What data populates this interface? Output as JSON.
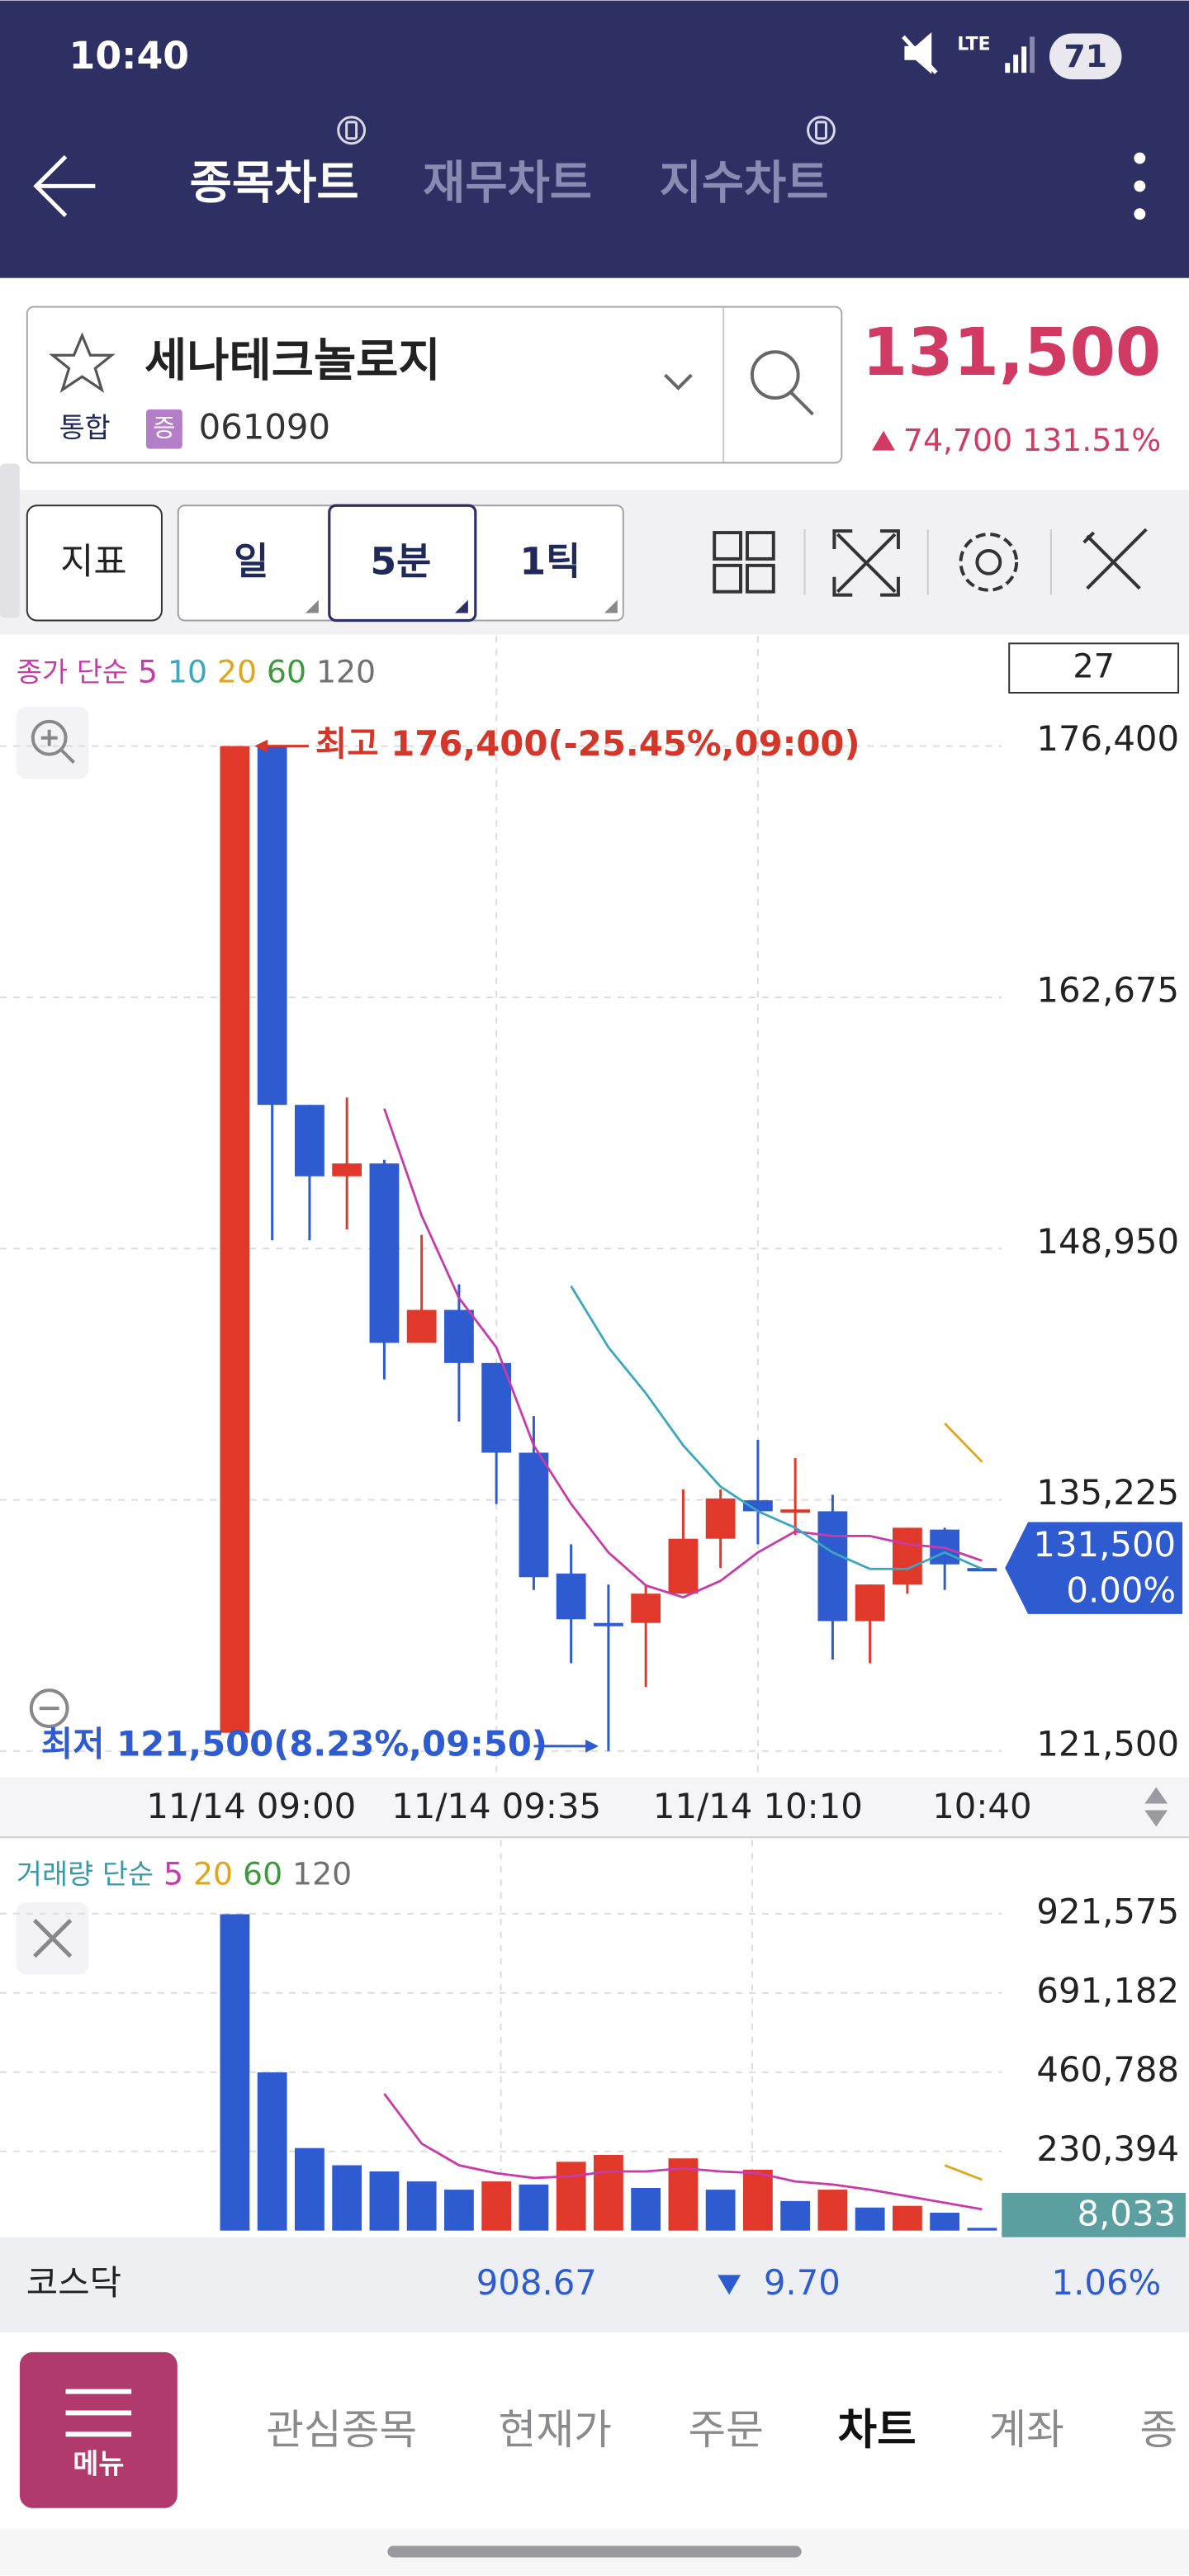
{
  "status_bar": {
    "time": "10:40",
    "network": "LTE",
    "battery": "71"
  },
  "header": {
    "tabs": [
      "종목차트",
      "재무차트",
      "지수차트"
    ]
  },
  "stock": {
    "name": "세나테크놀로지",
    "market": "통합",
    "badge": "증",
    "code": "061090",
    "price": "131,500",
    "change": "74,700",
    "change_rate": "131.51%"
  },
  "toolbar": {
    "indicator": "지표",
    "periods": [
      "일",
      "5분",
      "1틱"
    ]
  },
  "price_chart": {
    "type": "candlestick",
    "legend_label": "종가 단순",
    "count": "27",
    "up_color": "#e0392b",
    "down_color": "#2e5bd0",
    "categories": [
      "11/14 09:00",
      null,
      null,
      null,
      null,
      null,
      null,
      "11/14 09:35",
      null,
      null,
      null,
      null,
      null,
      null,
      "11/14 10:10",
      null,
      null,
      null,
      null,
      null,
      "10:40"
    ],
    "open": [
      122500,
      176400,
      156800,
      152900,
      153600,
      143800,
      145600,
      142700,
      137800,
      131200,
      128500,
      128500,
      130100,
      133100,
      135200,
      134600,
      134600,
      128600,
      130600,
      133600,
      131500
    ],
    "high": [
      176400,
      176400,
      156800,
      157200,
      153800,
      149700,
      147000,
      142700,
      139800,
      132800,
      130600,
      130600,
      135800,
      135800,
      138500,
      137500,
      135500,
      130600,
      133700,
      133700,
      131500
    ],
    "low": [
      122500,
      149400,
      149400,
      150000,
      141800,
      143800,
      139500,
      135000,
      130300,
      126300,
      121500,
      125000,
      130100,
      131500,
      132800,
      133300,
      126500,
      126300,
      130100,
      130300,
      131500
    ],
    "close": [
      176400,
      156800,
      152900,
      153600,
      143800,
      145600,
      142700,
      137800,
      131000,
      128700,
      128400,
      130100,
      133100,
      135300,
      134600,
      134700,
      128600,
      130600,
      133700,
      131700,
      131500
    ],
    "ma_series": [
      {
        "name": "5",
        "color": "#c93aa9",
        "values": [
          null,
          null,
          null,
          null,
          156600,
          150750,
          146250,
          143550,
          138200,
          135000,
          132350,
          130550,
          129900,
          130800,
          132350,
          133500,
          133250,
          133250,
          132800,
          132600,
          131900
        ]
      },
      {
        "name": "10",
        "color": "#3aa6c0",
        "values": [
          null,
          null,
          null,
          null,
          null,
          null,
          null,
          null,
          null,
          146900,
          143550,
          141050,
          138200,
          135950,
          134600,
          133700,
          132350,
          131450,
          131450,
          132350,
          131450
        ]
      },
      {
        "name": "20",
        "color": "#e2a51a",
        "values": [
          null,
          null,
          null,
          null,
          null,
          null,
          null,
          null,
          null,
          null,
          null,
          null,
          null,
          null,
          null,
          null,
          null,
          null,
          null,
          139400,
          137300
        ]
      },
      {
        "name": "60",
        "color": "#3c9a3c"
      },
      {
        "name": "120",
        "color": "#707070"
      }
    ],
    "ylim": [
      121500,
      176400
    ],
    "yticks": [
      {
        "value": 176400,
        "label": "176,400"
      },
      {
        "value": 162675,
        "label": "162,675"
      },
      {
        "value": 148950,
        "label": "148,950"
      },
      {
        "value": 135225,
        "label": "135,225"
      },
      {
        "value": 121500,
        "label": "121,500"
      }
    ],
    "high_note": "최고 176,400(-25.45%,09:00)",
    "low_note": "최저 121,500(8.23%,09:50)",
    "last_price": "131,500",
    "last_change": "0.00%"
  },
  "volume_chart": {
    "type": "bar",
    "legend_label": "거래량 단순",
    "up_color": "#e0392b",
    "down_color": "#2e5bd0",
    "values": [
      920000,
      460000,
      240000,
      190000,
      172000,
      143000,
      119000,
      143000,
      134000,
      200000,
      220000,
      124000,
      210000,
      119000,
      177000,
      86000,
      119000,
      67000,
      72000,
      52000,
      8033
    ],
    "ma_series": [
      {
        "name": "5",
        "color": "#c93aa9",
        "values": [
          null,
          null,
          null,
          null,
          398000,
          253000,
          190000,
          167000,
          153000,
          158000,
          172000,
          172000,
          181000,
          172000,
          167000,
          143000,
          134000,
          119000,
          100000,
          81000,
          62000
        ]
      },
      {
        "name": "20",
        "color": "#e2a51a",
        "values": [
          null,
          null,
          null,
          null,
          null,
          null,
          null,
          null,
          null,
          null,
          null,
          null,
          null,
          null,
          null,
          null,
          null,
          null,
          null,
          190000,
          148000
        ]
      },
      {
        "name": "60",
        "color": "#3c9a3c"
      },
      {
        "name": "120",
        "color": "#707070"
      }
    ],
    "ylim": [
      0,
      921575
    ],
    "yticks": [
      {
        "value": 921575,
        "label": "921,575"
      },
      {
        "value": 691182,
        "label": "691,182"
      },
      {
        "value": 460788,
        "label": "460,788"
      },
      {
        "value": 230394,
        "label": "230,394"
      }
    ],
    "last_value_label": "8,033"
  },
  "market_bar": {
    "name": "코스닥",
    "index": "908.67",
    "change": "9.70",
    "change_rate": "1.06%"
  },
  "bottom_nav": {
    "menu": "메뉴",
    "items": [
      "관심종목",
      "현재가",
      "주문",
      "차트",
      "계좌",
      "종"
    ]
  }
}
